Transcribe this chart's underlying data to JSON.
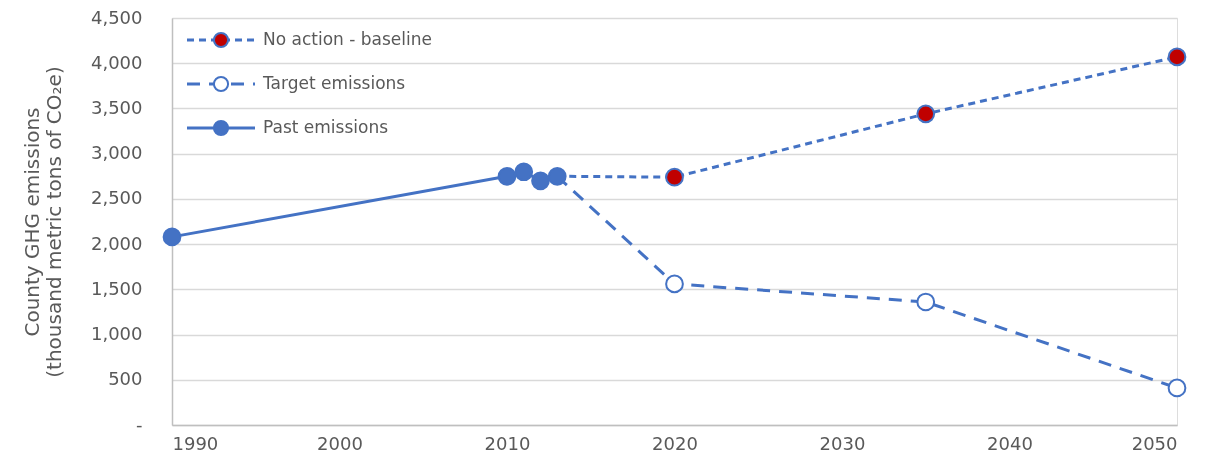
{
  "chart_data": {
    "type": "line",
    "ylabel": "County GHG emissions\n(thousand metric tons of CO₂e)",
    "xlim": [
      1990,
      2050
    ],
    "xticks": [
      1990,
      2000,
      2010,
      2020,
      2030,
      2040,
      2050
    ],
    "ylim": [
      0,
      4500
    ],
    "yticks": [
      {
        "value": 0,
        "label": "-"
      },
      500,
      {
        "value": 1000,
        "label": "1,000"
      },
      {
        "value": 1500,
        "label": "1,500"
      },
      {
        "value": 2000,
        "label": "2,000"
      },
      {
        "value": 2500,
        "label": "2,500"
      },
      {
        "value": 3000,
        "label": "3,000"
      },
      {
        "value": 3500,
        "label": "3,500"
      },
      {
        "value": 4000,
        "label": "4,000"
      },
      {
        "value": 4500,
        "label": "4,500"
      }
    ],
    "grid": "y",
    "legend": "top left",
    "marker": "circle",
    "series": [
      {
        "name": "No action - baseline",
        "color": "#4472c4",
        "colors": [
          null,
          "#c00000",
          "#c00000",
          "#c00000"
        ],
        "line_style": "dotted",
        "x": [
          2013,
          2020,
          2035,
          2050
        ],
        "values": [
          2750,
          2740,
          3440,
          4070
        ]
      },
      {
        "name": "Target emissions",
        "color": "#4472c4",
        "colors": [
          null,
          "#ffffff",
          "#ffffff",
          "#ffffff"
        ],
        "line_style": "dashed",
        "x": [
          2013,
          2020,
          2035,
          2050
        ],
        "values": [
          2750,
          1560,
          1360,
          410
        ]
      },
      {
        "name": "Past emissions",
        "color": "#4472c4",
        "line_style": "solid",
        "x": [
          1990,
          2010,
          2011,
          2012,
          2013
        ],
        "values": [
          2080,
          2750,
          2800,
          2700,
          2750
        ]
      }
    ]
  }
}
